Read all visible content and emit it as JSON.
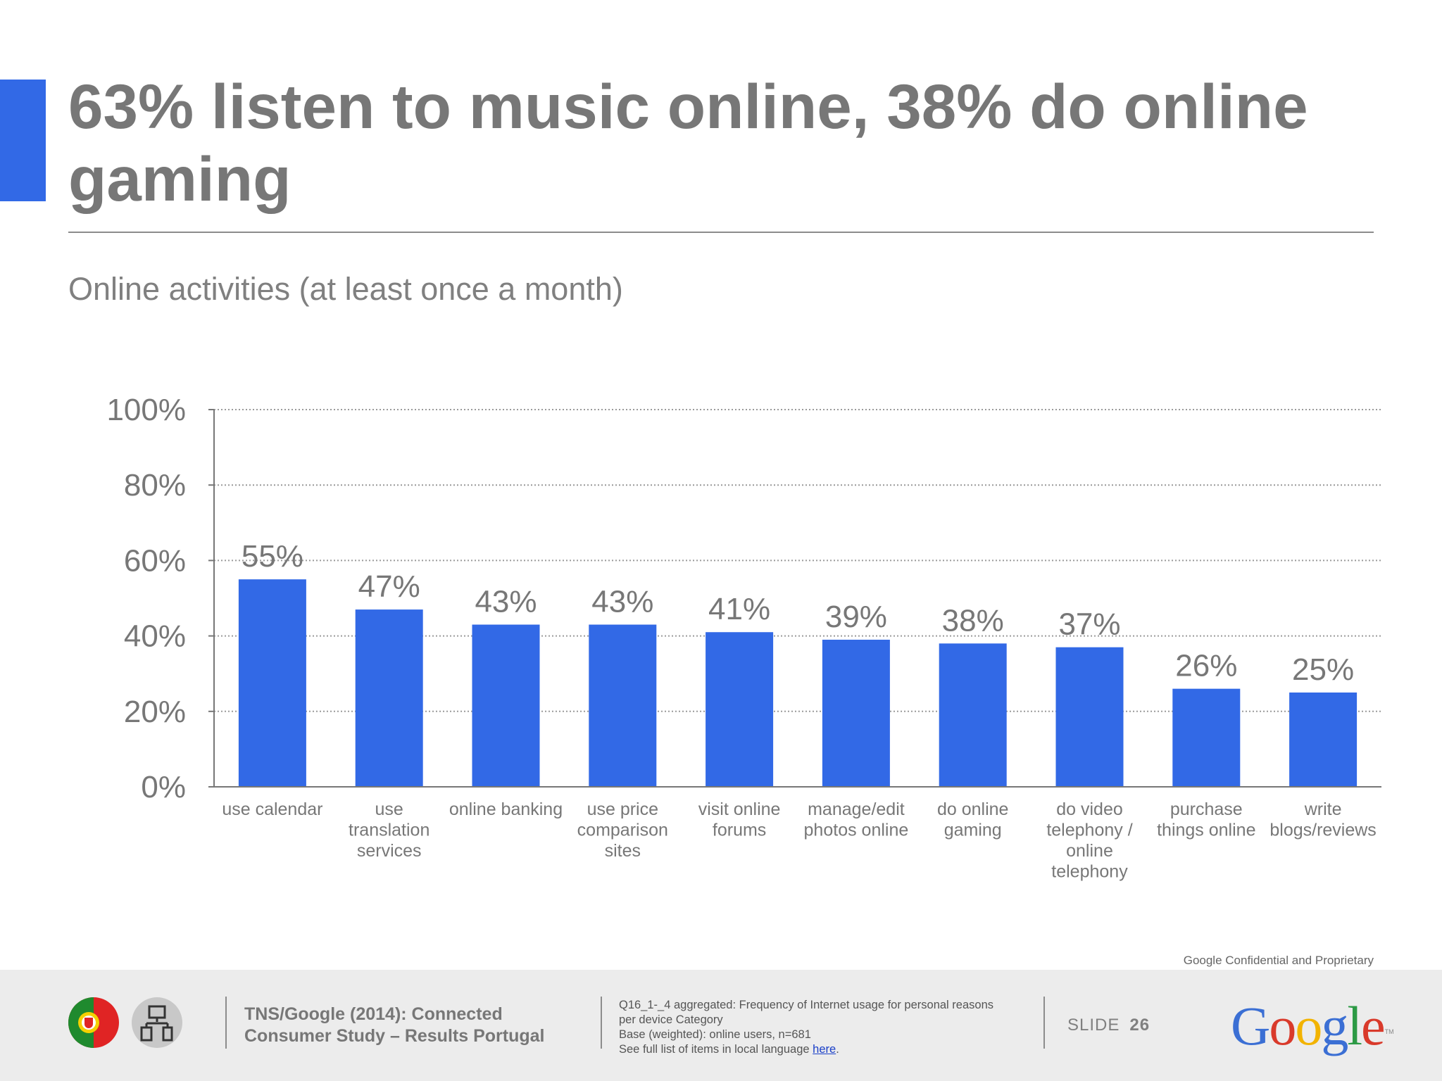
{
  "title": "63% listen to music online, 38% do online gaming",
  "subtitle": "Online activities (at least once a month)",
  "chart_data": {
    "type": "bar",
    "categories": [
      "use calendar",
      "use translation services",
      "online banking",
      "use price comparison sites",
      "visit online forums",
      "manage/edit photos online",
      "do online gaming",
      "do video telephony / online telephony",
      "purchase things online",
      "write blogs/reviews"
    ],
    "category_lines": [
      [
        "use calendar"
      ],
      [
        "use",
        "translation",
        "services"
      ],
      [
        "online banking"
      ],
      [
        "use price",
        "comparison",
        "sites"
      ],
      [
        "visit online",
        "forums"
      ],
      [
        "manage/edit",
        "photos online"
      ],
      [
        "do online",
        "gaming"
      ],
      [
        "do video",
        "telephony /",
        "online",
        "telephony"
      ],
      [
        "purchase",
        "things online"
      ],
      [
        "write",
        "blogs/reviews"
      ]
    ],
    "values": [
      55,
      47,
      43,
      43,
      41,
      39,
      38,
      37,
      26,
      25
    ],
    "data_labels": [
      "55%",
      "47%",
      "43%",
      "43%",
      "41%",
      "39%",
      "38%",
      "37%",
      "26%",
      "25%"
    ],
    "ylim": [
      0,
      100
    ],
    "yticks": [
      0,
      20,
      40,
      60,
      80,
      100
    ],
    "ytick_labels": [
      "0%",
      "20%",
      "40%",
      "60%",
      "80%",
      "100%"
    ],
    "grid": true,
    "bar_color": "#3269e6"
  },
  "confidential": "Google Confidential and Proprietary",
  "footer": {
    "study_line1": "TNS/Google (2014): Connected",
    "study_line2": "Consumer Study – Results Portugal",
    "note_line1": "Q16_1-_4 aggregated: Frequency of Internet usage for personal reasons",
    "note_line2": "per device Category",
    "note_line3": "Base (weighted): online users, n=681",
    "note_line4_prefix": "See full list of items in local language ",
    "note_link": "here",
    "note_line4_suffix": ".",
    "slide_label": "SLIDE",
    "slide_number": "26",
    "logo_text": "Google",
    "logo_tm": "TM",
    "icons": [
      "portugal-flag-icon",
      "devices-icon"
    ]
  }
}
